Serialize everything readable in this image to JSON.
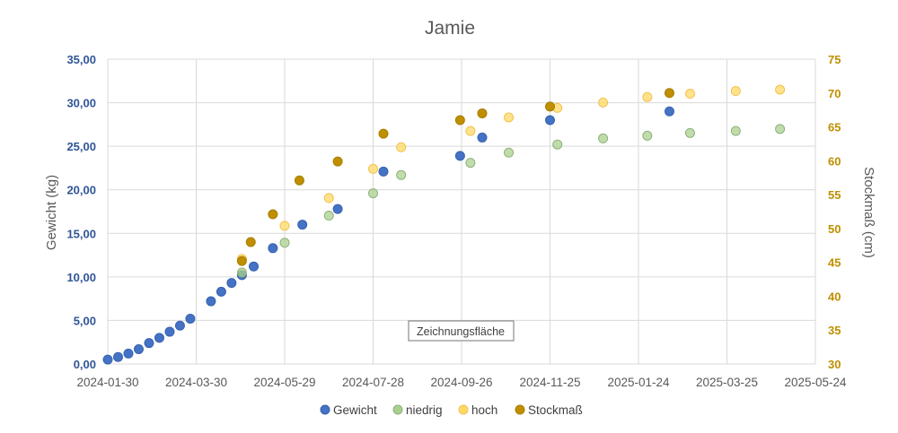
{
  "chart_data": {
    "type": "scatter",
    "title": "Jamie",
    "ylabel": "Gewicht (kg)",
    "y2label": "Stockmaß (cm)",
    "xlim": [
      "2024-01-30",
      "2025-05-24"
    ],
    "x_ticks": [
      "2024-01-30",
      "2024-03-30",
      "2024-05-29",
      "2024-07-28",
      "2024-09-26",
      "2024-11-25",
      "2025-01-24",
      "2025-03-25",
      "2025-05-24"
    ],
    "ylim": [
      0,
      35
    ],
    "y_ticks": [
      "0,00",
      "5,00",
      "10,00",
      "15,00",
      "20,00",
      "25,00",
      "30,00",
      "35,00"
    ],
    "y2lim": [
      30,
      75
    ],
    "y2_ticks": [
      "30",
      "35",
      "40",
      "45",
      "50",
      "55",
      "60",
      "65",
      "70",
      "75"
    ],
    "grid": true,
    "legend_position": "bottom",
    "series": [
      {
        "name": "Gewicht",
        "axis": "left",
        "color": "#4472c4",
        "x": [
          "2024-01-30",
          "2024-02-06",
          "2024-02-13",
          "2024-02-20",
          "2024-02-27",
          "2024-03-05",
          "2024-03-12",
          "2024-03-19",
          "2024-03-26",
          "2024-04-09",
          "2024-04-16",
          "2024-04-23",
          "2024-04-30",
          "2024-05-08",
          "2024-05-21",
          "2024-06-10",
          "2024-07-04",
          "2024-08-04",
          "2024-09-25",
          "2024-10-10",
          "2024-11-25",
          "2025-02-14"
        ],
        "y": [
          0.5,
          0.8,
          1.2,
          1.7,
          2.4,
          3.0,
          3.7,
          4.4,
          5.2,
          7.2,
          8.3,
          9.3,
          10.2,
          11.2,
          13.3,
          16.0,
          17.8,
          22.1,
          23.9,
          26.0,
          28.0,
          29.0
        ]
      },
      {
        "name": "niedrig",
        "axis": "right",
        "color": "#a9d18e",
        "x": [
          "2024-04-30",
          "2024-05-29",
          "2024-06-28",
          "2024-07-28",
          "2024-08-16",
          "2024-10-02",
          "2024-10-28",
          "2024-11-30",
          "2024-12-31",
          "2025-01-30",
          "2025-02-28",
          "2025-03-31",
          "2025-04-30"
        ],
        "y": [
          43.5,
          47.9,
          51.9,
          55.2,
          57.9,
          59.7,
          61.2,
          62.4,
          63.3,
          63.7,
          64.1,
          64.4,
          64.7
        ]
      },
      {
        "name": "hoch",
        "axis": "right",
        "color": "#ffd966",
        "x": [
          "2024-04-30",
          "2024-05-29",
          "2024-06-28",
          "2024-07-28",
          "2024-08-16",
          "2024-10-02",
          "2024-10-28",
          "2024-11-30",
          "2024-12-31",
          "2025-01-30",
          "2025-02-28",
          "2025-03-31",
          "2025-04-30"
        ],
        "y": [
          45.5,
          50.4,
          54.5,
          58.8,
          62.0,
          64.4,
          66.4,
          67.8,
          68.6,
          69.4,
          69.9,
          70.3,
          70.5
        ]
      },
      {
        "name": "Stockmaß",
        "axis": "right",
        "color": "#bf8f00",
        "x": [
          "2024-04-30",
          "2024-05-06",
          "2024-05-21",
          "2024-06-08",
          "2024-07-04",
          "2024-08-04",
          "2024-09-25",
          "2024-10-10",
          "2024-11-25",
          "2025-02-14"
        ],
        "y": [
          45.2,
          48.0,
          52.1,
          57.1,
          59.9,
          64.0,
          66.0,
          67.0,
          68.0,
          70.0
        ]
      }
    ]
  },
  "tooltip": {
    "text": "Zeichnungsfläche"
  }
}
